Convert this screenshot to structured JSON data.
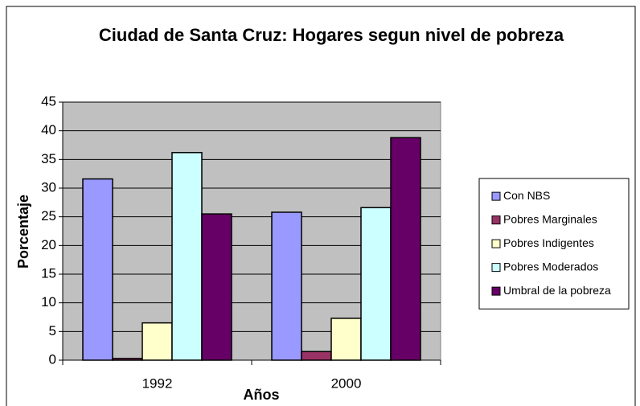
{
  "chart_data": {
    "type": "bar",
    "title": "Ciudad de Santa Cruz: Hogares segun nivel de pobreza",
    "x_label": "Años",
    "y_label": "Porcentaje",
    "categories": [
      "1992",
      "2000"
    ],
    "series": [
      {
        "name": "Con NBS",
        "color": "#9999ff",
        "values": [
          31.6,
          25.8
        ]
      },
      {
        "name": "Pobres Marginales",
        "color": "#993366",
        "values": [
          0.3,
          1.5
        ]
      },
      {
        "name": "Pobres Indigentes",
        "color": "#ffffcc",
        "values": [
          6.5,
          7.3
        ]
      },
      {
        "name": "Pobres Moderados",
        "color": "#ccffff",
        "values": [
          36.2,
          26.6
        ]
      },
      {
        "name": "Umbral de la pobreza",
        "color": "#660066",
        "values": [
          25.5,
          38.8
        ]
      }
    ],
    "ylim": [
      0,
      45
    ],
    "yticks": [
      0,
      5,
      10,
      15,
      20,
      25,
      30,
      35,
      40,
      45
    ],
    "grid": true,
    "legend": "right"
  }
}
